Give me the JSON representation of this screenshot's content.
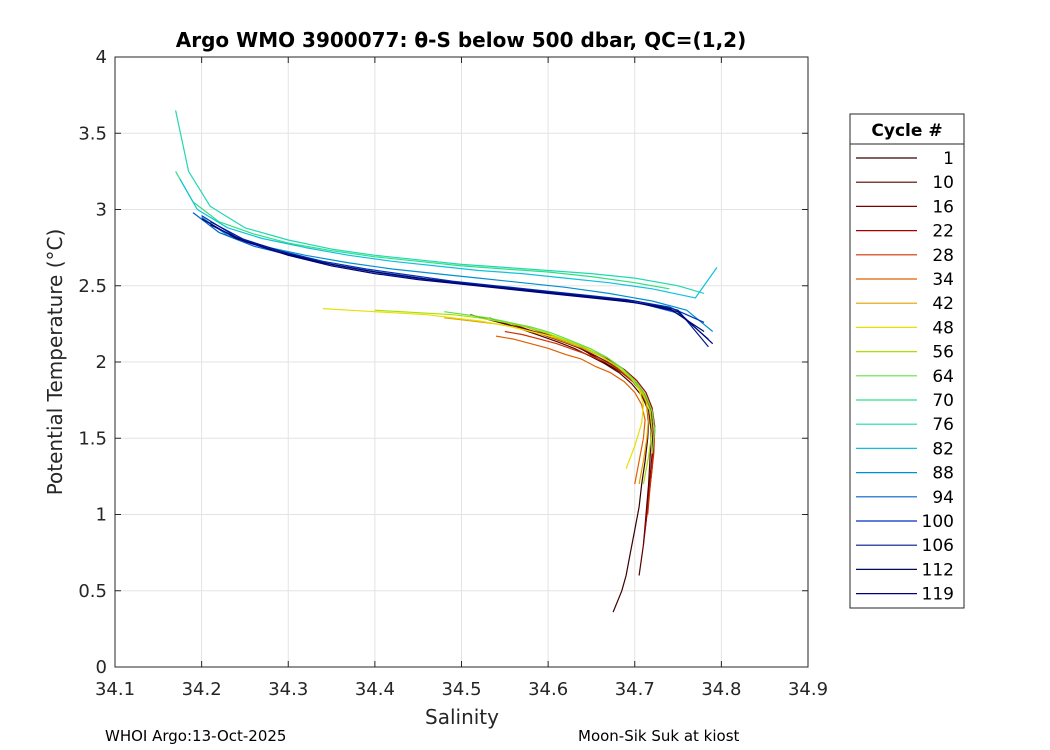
{
  "chart_data": {
    "type": "line",
    "title": "Argo WMO 3900077: θ-S below 500 dbar,  QC=(1,2)",
    "xlabel": "Salinity",
    "ylabel": "Potential Temperature (°C)",
    "xlim": [
      34.1,
      34.9
    ],
    "ylim": [
      0,
      4
    ],
    "xticks": [
      "34.1",
      "34.2",
      "34.3",
      "34.4",
      "34.5",
      "34.6",
      "34.7",
      "34.8",
      "34.9"
    ],
    "yticks": [
      "0",
      "0.5",
      "1",
      "1.5",
      "2",
      "2.5",
      "3",
      "3.5",
      "4"
    ],
    "grid": true,
    "legend": {
      "title": "Cycle #",
      "position": "right",
      "entries": [
        "1",
        "10",
        "16",
        "22",
        "28",
        "34",
        "42",
        "48",
        "56",
        "64",
        "70",
        "76",
        "82",
        "88",
        "94",
        "100",
        "106",
        "112",
        "119"
      ]
    },
    "series": [
      {
        "name": "1",
        "color": "#3a0000",
        "x": [
          34.675,
          34.685,
          34.69,
          34.695,
          34.7,
          34.705,
          34.708,
          34.712,
          34.715,
          34.716,
          34.714,
          34.708,
          34.698,
          34.685,
          34.67,
          34.655,
          34.64,
          34.625,
          34.61,
          34.59,
          34.57,
          34.55,
          34.53,
          34.51
        ],
        "y": [
          0.36,
          0.5,
          0.6,
          0.75,
          0.9,
          1.05,
          1.2,
          1.35,
          1.5,
          1.6,
          1.7,
          1.8,
          1.87,
          1.93,
          1.98,
          2.03,
          2.08,
          2.12,
          2.15,
          2.19,
          2.22,
          2.25,
          2.28,
          2.31
        ]
      },
      {
        "name": "10",
        "color": "#560000",
        "x": [
          34.705,
          34.71,
          34.713,
          34.716,
          34.718,
          34.719,
          34.716,
          34.708,
          34.696,
          34.682,
          34.665,
          34.648,
          34.63,
          34.612,
          34.592,
          34.572,
          34.552,
          34.532
        ],
        "y": [
          0.6,
          0.8,
          1.0,
          1.2,
          1.4,
          1.55,
          1.68,
          1.78,
          1.86,
          1.93,
          1.99,
          2.04,
          2.09,
          2.13,
          2.17,
          2.21,
          2.25,
          2.29
        ]
      },
      {
        "name": "16",
        "color": "#7a0000",
        "x": [
          34.71,
          34.714,
          34.717,
          34.72,
          34.721,
          34.719,
          34.712,
          34.701,
          34.688,
          34.672,
          34.655,
          34.637,
          34.618,
          34.598,
          34.578,
          34.558
        ],
        "y": [
          0.8,
          1.0,
          1.2,
          1.4,
          1.55,
          1.67,
          1.78,
          1.86,
          1.93,
          1.99,
          2.04,
          2.09,
          2.13,
          2.17,
          2.21,
          2.25
        ]
      },
      {
        "name": "22",
        "color": "#a00000",
        "x": [
          34.712,
          34.716,
          34.72,
          34.722,
          34.723,
          34.72,
          34.713,
          34.702,
          34.688,
          34.672,
          34.654,
          34.635,
          34.615,
          34.595,
          34.575
        ],
        "y": [
          0.9,
          1.1,
          1.3,
          1.45,
          1.58,
          1.7,
          1.8,
          1.88,
          1.95,
          2.01,
          2.06,
          2.11,
          2.15,
          2.19,
          2.23
        ]
      },
      {
        "name": "28",
        "color": "#d03000",
        "x": [
          34.715,
          34.718,
          34.722,
          34.723,
          34.72,
          34.712,
          34.7,
          34.686,
          34.67,
          34.65,
          34.63,
          34.61,
          34.59,
          34.57,
          34.55
        ],
        "y": [
          1.0,
          1.2,
          1.4,
          1.55,
          1.68,
          1.78,
          1.86,
          1.93,
          1.99,
          2.04,
          2.08,
          2.12,
          2.15,
          2.18,
          2.2
        ]
      },
      {
        "name": "34",
        "color": "#e06000",
        "x": [
          34.7,
          34.705,
          34.71,
          34.712,
          34.708,
          34.7,
          34.688,
          34.672,
          34.655,
          34.638,
          34.62,
          34.6,
          34.58,
          34.56,
          34.54
        ],
        "y": [
          1.2,
          1.35,
          1.5,
          1.62,
          1.72,
          1.8,
          1.87,
          1.93,
          1.97,
          2.02,
          2.05,
          2.09,
          2.12,
          2.15,
          2.17
        ]
      },
      {
        "name": "42",
        "color": "#e0a000",
        "x": [
          34.705,
          34.71,
          34.714,
          34.716,
          34.713,
          34.705,
          34.693,
          34.677,
          34.66,
          34.64,
          34.62,
          34.6,
          34.58,
          34.56,
          34.54,
          34.51,
          34.48
        ],
        "y": [
          1.2,
          1.35,
          1.5,
          1.63,
          1.74,
          1.83,
          1.91,
          1.98,
          2.04,
          2.09,
          2.13,
          2.17,
          2.2,
          2.23,
          2.25,
          2.27,
          2.29
        ]
      },
      {
        "name": "48",
        "color": "#e8e000",
        "x": [
          34.69,
          34.7,
          34.708,
          34.71,
          34.705,
          34.695,
          34.68,
          34.66,
          34.64,
          34.61,
          34.58,
          34.55,
          34.52,
          34.49,
          34.46,
          34.43,
          34.4,
          34.37,
          34.34
        ],
        "y": [
          1.3,
          1.45,
          1.6,
          1.72,
          1.82,
          1.9,
          1.97,
          2.04,
          2.1,
          2.16,
          2.2,
          2.24,
          2.27,
          2.29,
          2.31,
          2.32,
          2.33,
          2.34,
          2.35
        ]
      },
      {
        "name": "56",
        "color": "#a8e000",
        "x": [
          34.71,
          34.716,
          34.72,
          34.718,
          34.71,
          34.698,
          34.682,
          34.664,
          34.644,
          34.622,
          34.598,
          34.574,
          34.55,
          34.52,
          34.49,
          34.46,
          34.43,
          34.4
        ],
        "y": [
          1.2,
          1.38,
          1.55,
          1.68,
          1.79,
          1.88,
          1.96,
          2.03,
          2.09,
          2.14,
          2.19,
          2.23,
          2.26,
          2.29,
          2.31,
          2.32,
          2.33,
          2.34
        ]
      },
      {
        "name": "64",
        "color": "#60e040",
        "x": [
          34.72,
          34.723,
          34.72,
          34.712,
          34.7,
          34.685,
          34.668,
          34.648,
          34.626,
          34.604,
          34.58,
          34.555,
          34.53,
          34.505,
          34.48
        ],
        "y": [
          1.4,
          1.55,
          1.68,
          1.79,
          1.88,
          1.96,
          2.03,
          2.09,
          2.14,
          2.19,
          2.23,
          2.26,
          2.29,
          2.31,
          2.33
        ]
      },
      {
        "name": "70",
        "color": "#30e080",
        "x": [
          34.17,
          34.19,
          34.22,
          34.26,
          34.3,
          34.35,
          34.4,
          34.45,
          34.5,
          34.55,
          34.6,
          34.65,
          34.7,
          34.74
        ],
        "y": [
          3.25,
          3.05,
          2.92,
          2.84,
          2.78,
          2.73,
          2.69,
          2.66,
          2.63,
          2.61,
          2.59,
          2.56,
          2.52,
          2.48
        ]
      },
      {
        "name": "76",
        "color": "#20d8b0",
        "x": [
          34.17,
          34.185,
          34.21,
          34.25,
          34.3,
          34.35,
          34.4,
          34.45,
          34.5,
          34.55,
          34.6,
          34.65,
          34.7,
          34.75,
          34.78
        ],
        "y": [
          3.65,
          3.25,
          3.02,
          2.88,
          2.8,
          2.74,
          2.7,
          2.67,
          2.64,
          2.62,
          2.6,
          2.58,
          2.55,
          2.5,
          2.45
        ]
      },
      {
        "name": "82",
        "color": "#10c0e0",
        "x": [
          34.175,
          34.195,
          34.23,
          34.27,
          34.32,
          34.37,
          34.42,
          34.47,
          34.52,
          34.57,
          34.62,
          34.67,
          34.72,
          34.77,
          34.795
        ],
        "y": [
          3.2,
          3.0,
          2.88,
          2.81,
          2.75,
          2.7,
          2.66,
          2.63,
          2.6,
          2.58,
          2.55,
          2.52,
          2.48,
          2.42,
          2.62
        ]
      },
      {
        "name": "88",
        "color": "#0090d0",
        "x": [
          34.2,
          34.23,
          34.27,
          34.32,
          34.37,
          34.42,
          34.47,
          34.52,
          34.57,
          34.62,
          34.67,
          34.72,
          34.76,
          34.79
        ],
        "y": [
          2.95,
          2.83,
          2.76,
          2.7,
          2.65,
          2.61,
          2.58,
          2.55,
          2.52,
          2.49,
          2.45,
          2.4,
          2.34,
          2.2
        ]
      },
      {
        "name": "94",
        "color": "#0060d0",
        "x": [
          34.19,
          34.22,
          34.26,
          34.31,
          34.36,
          34.41,
          34.46,
          34.51,
          34.56,
          34.61,
          34.66,
          34.71,
          34.75,
          34.785
        ],
        "y": [
          2.98,
          2.85,
          2.76,
          2.69,
          2.63,
          2.58,
          2.54,
          2.51,
          2.48,
          2.45,
          2.42,
          2.38,
          2.32,
          2.15
        ]
      },
      {
        "name": "100",
        "color": "#0030c0",
        "x": [
          34.2,
          34.24,
          34.29,
          34.34,
          34.39,
          34.44,
          34.49,
          34.54,
          34.59,
          34.64,
          34.69,
          34.74,
          34.78
        ],
        "y": [
          2.96,
          2.82,
          2.73,
          2.66,
          2.61,
          2.57,
          2.53,
          2.5,
          2.47,
          2.44,
          2.41,
          2.36,
          2.26
        ]
      },
      {
        "name": "106",
        "color": "#001890",
        "x": [
          34.21,
          34.25,
          34.3,
          34.35,
          34.4,
          34.45,
          34.5,
          34.55,
          34.6,
          34.65,
          34.7,
          34.75,
          34.785
        ],
        "y": [
          2.92,
          2.8,
          2.71,
          2.64,
          2.59,
          2.55,
          2.52,
          2.49,
          2.46,
          2.43,
          2.4,
          2.34,
          2.1
        ]
      },
      {
        "name": "112",
        "color": "#000a60",
        "x": [
          34.2,
          34.24,
          34.29,
          34.34,
          34.39,
          34.44,
          34.49,
          34.54,
          34.59,
          34.64,
          34.69,
          34.74,
          34.78
        ],
        "y": [
          2.94,
          2.81,
          2.72,
          2.65,
          2.6,
          2.56,
          2.52,
          2.49,
          2.46,
          2.43,
          2.4,
          2.35,
          2.2
        ]
      },
      {
        "name": "119",
        "color": "#000080",
        "x": [
          34.21,
          34.25,
          34.3,
          34.35,
          34.4,
          34.45,
          34.5,
          34.55,
          34.6,
          34.65,
          34.7,
          34.75,
          34.79
        ],
        "y": [
          2.9,
          2.79,
          2.7,
          2.63,
          2.58,
          2.54,
          2.51,
          2.48,
          2.45,
          2.42,
          2.39,
          2.33,
          2.12
        ]
      }
    ]
  },
  "footer": {
    "left": "WHOI Argo:13-Oct-2025",
    "right": "Moon-Sik Suk at kiost"
  }
}
